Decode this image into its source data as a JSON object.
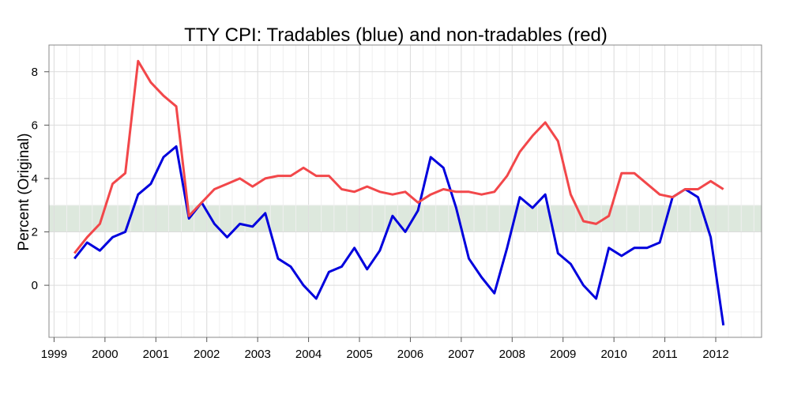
{
  "chart_data": {
    "type": "line",
    "title": "TTY CPI: Tradables (blue) and non-tradables (red)",
    "ylabel": "Percent (Original)",
    "xlabel": "",
    "xlim": [
      1998.9,
      2012.9
    ],
    "ylim": [
      -1.95,
      9.0
    ],
    "x_ticks": [
      1999,
      2000,
      2001,
      2002,
      2003,
      2004,
      2005,
      2006,
      2007,
      2008,
      2009,
      2010,
      2011,
      2012
    ],
    "y_ticks": [
      0,
      2,
      4,
      6,
      8
    ],
    "grid": true,
    "target_band": {
      "from": 2,
      "to": 3,
      "color": "#dde8dd"
    },
    "x": [
      1999.4,
      1999.65,
      1999.9,
      2000.15,
      2000.4,
      2000.65,
      2000.9,
      2001.15,
      2001.4,
      2001.65,
      2001.9,
      2002.15,
      2002.4,
      2002.65,
      2002.9,
      2003.15,
      2003.4,
      2003.65,
      2003.9,
      2004.15,
      2004.4,
      2004.65,
      2004.9,
      2005.15,
      2005.4,
      2005.65,
      2005.9,
      2006.15,
      2006.4,
      2006.65,
      2006.9,
      2007.15,
      2007.4,
      2007.65,
      2007.9,
      2008.15,
      2008.4,
      2008.65,
      2008.9,
      2009.15,
      2009.4,
      2009.65,
      2009.9,
      2010.15,
      2010.4,
      2010.65,
      2010.9,
      2011.15,
      2011.4,
      2011.65,
      2011.9,
      2012.15
    ],
    "series": [
      {
        "color": "#0000dd",
        "values": [
          1.0,
          1.6,
          1.3,
          1.8,
          2.0,
          3.4,
          3.8,
          4.8,
          5.2,
          2.5,
          3.1,
          2.3,
          1.8,
          2.3,
          2.2,
          2.7,
          1.0,
          0.7,
          0.0,
          -0.5,
          0.5,
          0.7,
          1.4,
          0.6,
          1.3,
          2.6,
          2.0,
          2.8,
          4.8,
          4.4,
          2.9,
          1.0,
          0.3,
          -0.3,
          1.4,
          3.3,
          2.9,
          3.4,
          1.2,
          0.8,
          0.0,
          -0.5,
          1.4,
          1.1,
          1.4,
          1.4,
          1.6,
          3.3,
          3.6,
          3.3,
          1.8,
          -1.5
        ]
      },
      {
        "color": "#f2474a",
        "values": [
          1.2,
          1.8,
          2.3,
          3.8,
          4.2,
          8.4,
          7.6,
          7.1,
          6.7,
          2.6,
          3.1,
          3.6,
          3.8,
          4.0,
          3.7,
          4.0,
          4.1,
          4.1,
          4.4,
          4.1,
          4.1,
          3.6,
          3.5,
          3.7,
          3.5,
          3.4,
          3.5,
          3.1,
          3.4,
          3.6,
          3.5,
          3.5,
          3.4,
          3.5,
          4.1,
          5.0,
          5.6,
          6.1,
          5.4,
          3.4,
          2.4,
          2.3,
          2.6,
          4.2,
          4.2,
          3.8,
          3.4,
          3.3,
          3.6,
          3.6,
          3.9,
          3.6
        ]
      }
    ]
  }
}
